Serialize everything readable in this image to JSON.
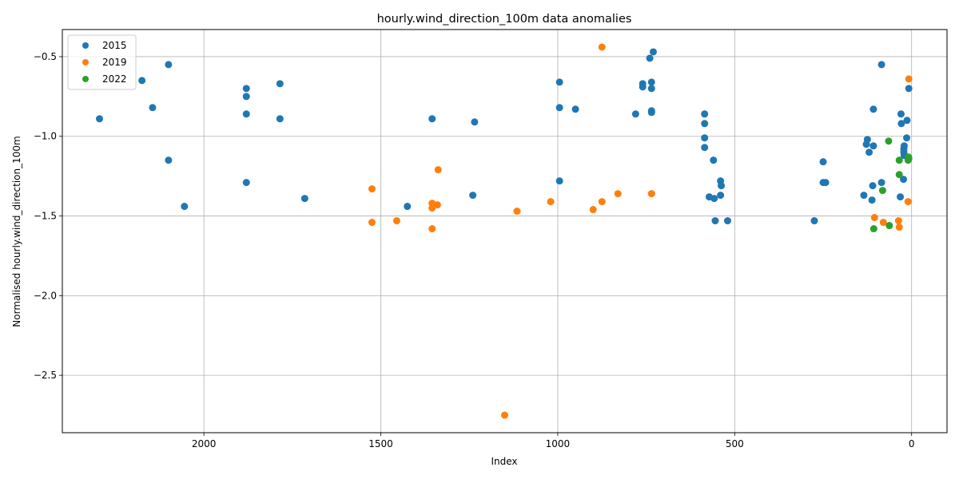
{
  "chart_data": {
    "type": "scatter",
    "title": "hourly.wind_direction_100m data anomalies",
    "xlabel": "Index",
    "ylabel": "Normalised hourly.wind_direction_100m",
    "xlim": [
      2400,
      -100
    ],
    "ylim": [
      -2.86,
      -0.33
    ],
    "x_inverted": true,
    "grid": true,
    "legend_position": "upper left",
    "xticks": [
      2000,
      1500,
      1000,
      500,
      0
    ],
    "xtick_labels": [
      "2000",
      "1500",
      "1000",
      "500",
      "0"
    ],
    "yticks": [
      -0.5,
      -1.0,
      -1.5,
      -2.0,
      -2.5
    ],
    "ytick_labels": [
      "−0.5",
      "−1.0",
      "−1.5",
      "−2.0",
      "−2.5"
    ],
    "series": [
      {
        "name": "2015",
        "color": "#1f77b4",
        "points": [
          [
            2295,
            -0.89
          ],
          [
            2175,
            -0.65
          ],
          [
            2145,
            -0.82
          ],
          [
            2100,
            -0.55
          ],
          [
            2100,
            -1.15
          ],
          [
            2055,
            -1.44
          ],
          [
            1880,
            -0.7
          ],
          [
            1880,
            -0.75
          ],
          [
            1880,
            -0.86
          ],
          [
            1880,
            -1.29
          ],
          [
            1785,
            -0.67
          ],
          [
            1785,
            -0.89
          ],
          [
            1715,
            -1.39
          ],
          [
            1425,
            -1.44
          ],
          [
            1355,
            -0.89
          ],
          [
            1235,
            -0.91
          ],
          [
            1240,
            -1.37
          ],
          [
            995,
            -0.66
          ],
          [
            995,
            -0.82
          ],
          [
            995,
            -1.28
          ],
          [
            950,
            -0.83
          ],
          [
            780,
            -0.86
          ],
          [
            760,
            -0.67
          ],
          [
            760,
            -0.69
          ],
          [
            740,
            -0.51
          ],
          [
            730,
            -0.47
          ],
          [
            735,
            -0.66
          ],
          [
            735,
            -0.7
          ],
          [
            735,
            -0.84
          ],
          [
            735,
            -0.85
          ],
          [
            585,
            -0.86
          ],
          [
            585,
            -0.92
          ],
          [
            585,
            -1.01
          ],
          [
            585,
            -1.07
          ],
          [
            560,
            -1.15
          ],
          [
            540,
            -1.28
          ],
          [
            538,
            -1.31
          ],
          [
            540,
            -1.37
          ],
          [
            572,
            -1.38
          ],
          [
            558,
            -1.39
          ],
          [
            555,
            -1.53
          ],
          [
            520,
            -1.53
          ],
          [
            250,
            -1.16
          ],
          [
            250,
            -1.29
          ],
          [
            243,
            -1.29
          ],
          [
            275,
            -1.53
          ],
          [
            85,
            -0.55
          ],
          [
            108,
            -0.83
          ],
          [
            30,
            -0.86
          ],
          [
            29,
            -0.92
          ],
          [
            13,
            -0.9
          ],
          [
            14,
            -1.01
          ],
          [
            125,
            -1.02
          ],
          [
            128,
            -1.05
          ],
          [
            108,
            -1.06
          ],
          [
            120,
            -1.1
          ],
          [
            21,
            -1.06
          ],
          [
            22,
            -1.08
          ],
          [
            22,
            -1.1
          ],
          [
            21,
            -1.12
          ],
          [
            23,
            -1.27
          ],
          [
            110,
            -1.31
          ],
          [
            85,
            -1.29
          ],
          [
            135,
            -1.37
          ],
          [
            112,
            -1.4
          ],
          [
            32,
            -1.38
          ],
          [
            8,
            -0.7
          ]
        ]
      },
      {
        "name": "2019",
        "color": "#ff7f0e",
        "points": [
          [
            875,
            -0.44
          ],
          [
            8,
            -0.64
          ],
          [
            1338,
            -1.21
          ],
          [
            1525,
            -1.33
          ],
          [
            1355,
            -1.42
          ],
          [
            1340,
            -1.43
          ],
          [
            1355,
            -1.45
          ],
          [
            1525,
            -1.54
          ],
          [
            1455,
            -1.53
          ],
          [
            1355,
            -1.58
          ],
          [
            1115,
            -1.47
          ],
          [
            1020,
            -1.41
          ],
          [
            900,
            -1.46
          ],
          [
            875,
            -1.41
          ],
          [
            830,
            -1.36
          ],
          [
            735,
            -1.36
          ],
          [
            1150,
            -2.75
          ],
          [
            105,
            -1.51
          ],
          [
            80,
            -1.54
          ],
          [
            37,
            -1.53
          ],
          [
            35,
            -1.57
          ],
          [
            10,
            -1.41
          ]
        ]
      },
      {
        "name": "2022",
        "color": "#2ca02c",
        "points": [
          [
            65,
            -1.03
          ],
          [
            8,
            -1.14
          ],
          [
            35,
            -1.15
          ],
          [
            9,
            -1.13
          ],
          [
            10,
            -1.15
          ],
          [
            35,
            -1.24
          ],
          [
            82,
            -1.34
          ],
          [
            63,
            -1.56
          ],
          [
            107,
            -1.58
          ]
        ]
      }
    ]
  }
}
